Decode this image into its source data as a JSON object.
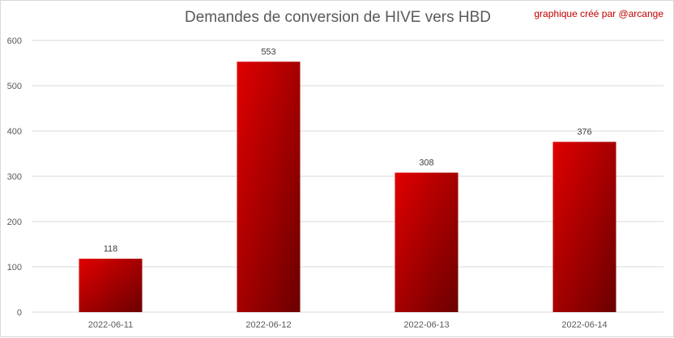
{
  "header": {
    "credit": "graphique créé par @arcange"
  },
  "chart_data": {
    "type": "bar",
    "title": "Demandes de conversion de HIVE vers HBD",
    "xlabel": "",
    "ylabel": "",
    "categories": [
      "2022-06-11",
      "2022-06-12",
      "2022-06-13",
      "2022-06-14"
    ],
    "values": [
      118,
      553,
      308,
      376
    ],
    "ylim": [
      0,
      600
    ],
    "yticks": [
      0,
      100,
      200,
      300,
      400,
      500,
      600
    ],
    "grid": true,
    "legend": "none",
    "colors": {
      "bar_light": "#e00000",
      "bar_dark": "#6b0000",
      "grid": "#d9d9d9"
    }
  }
}
